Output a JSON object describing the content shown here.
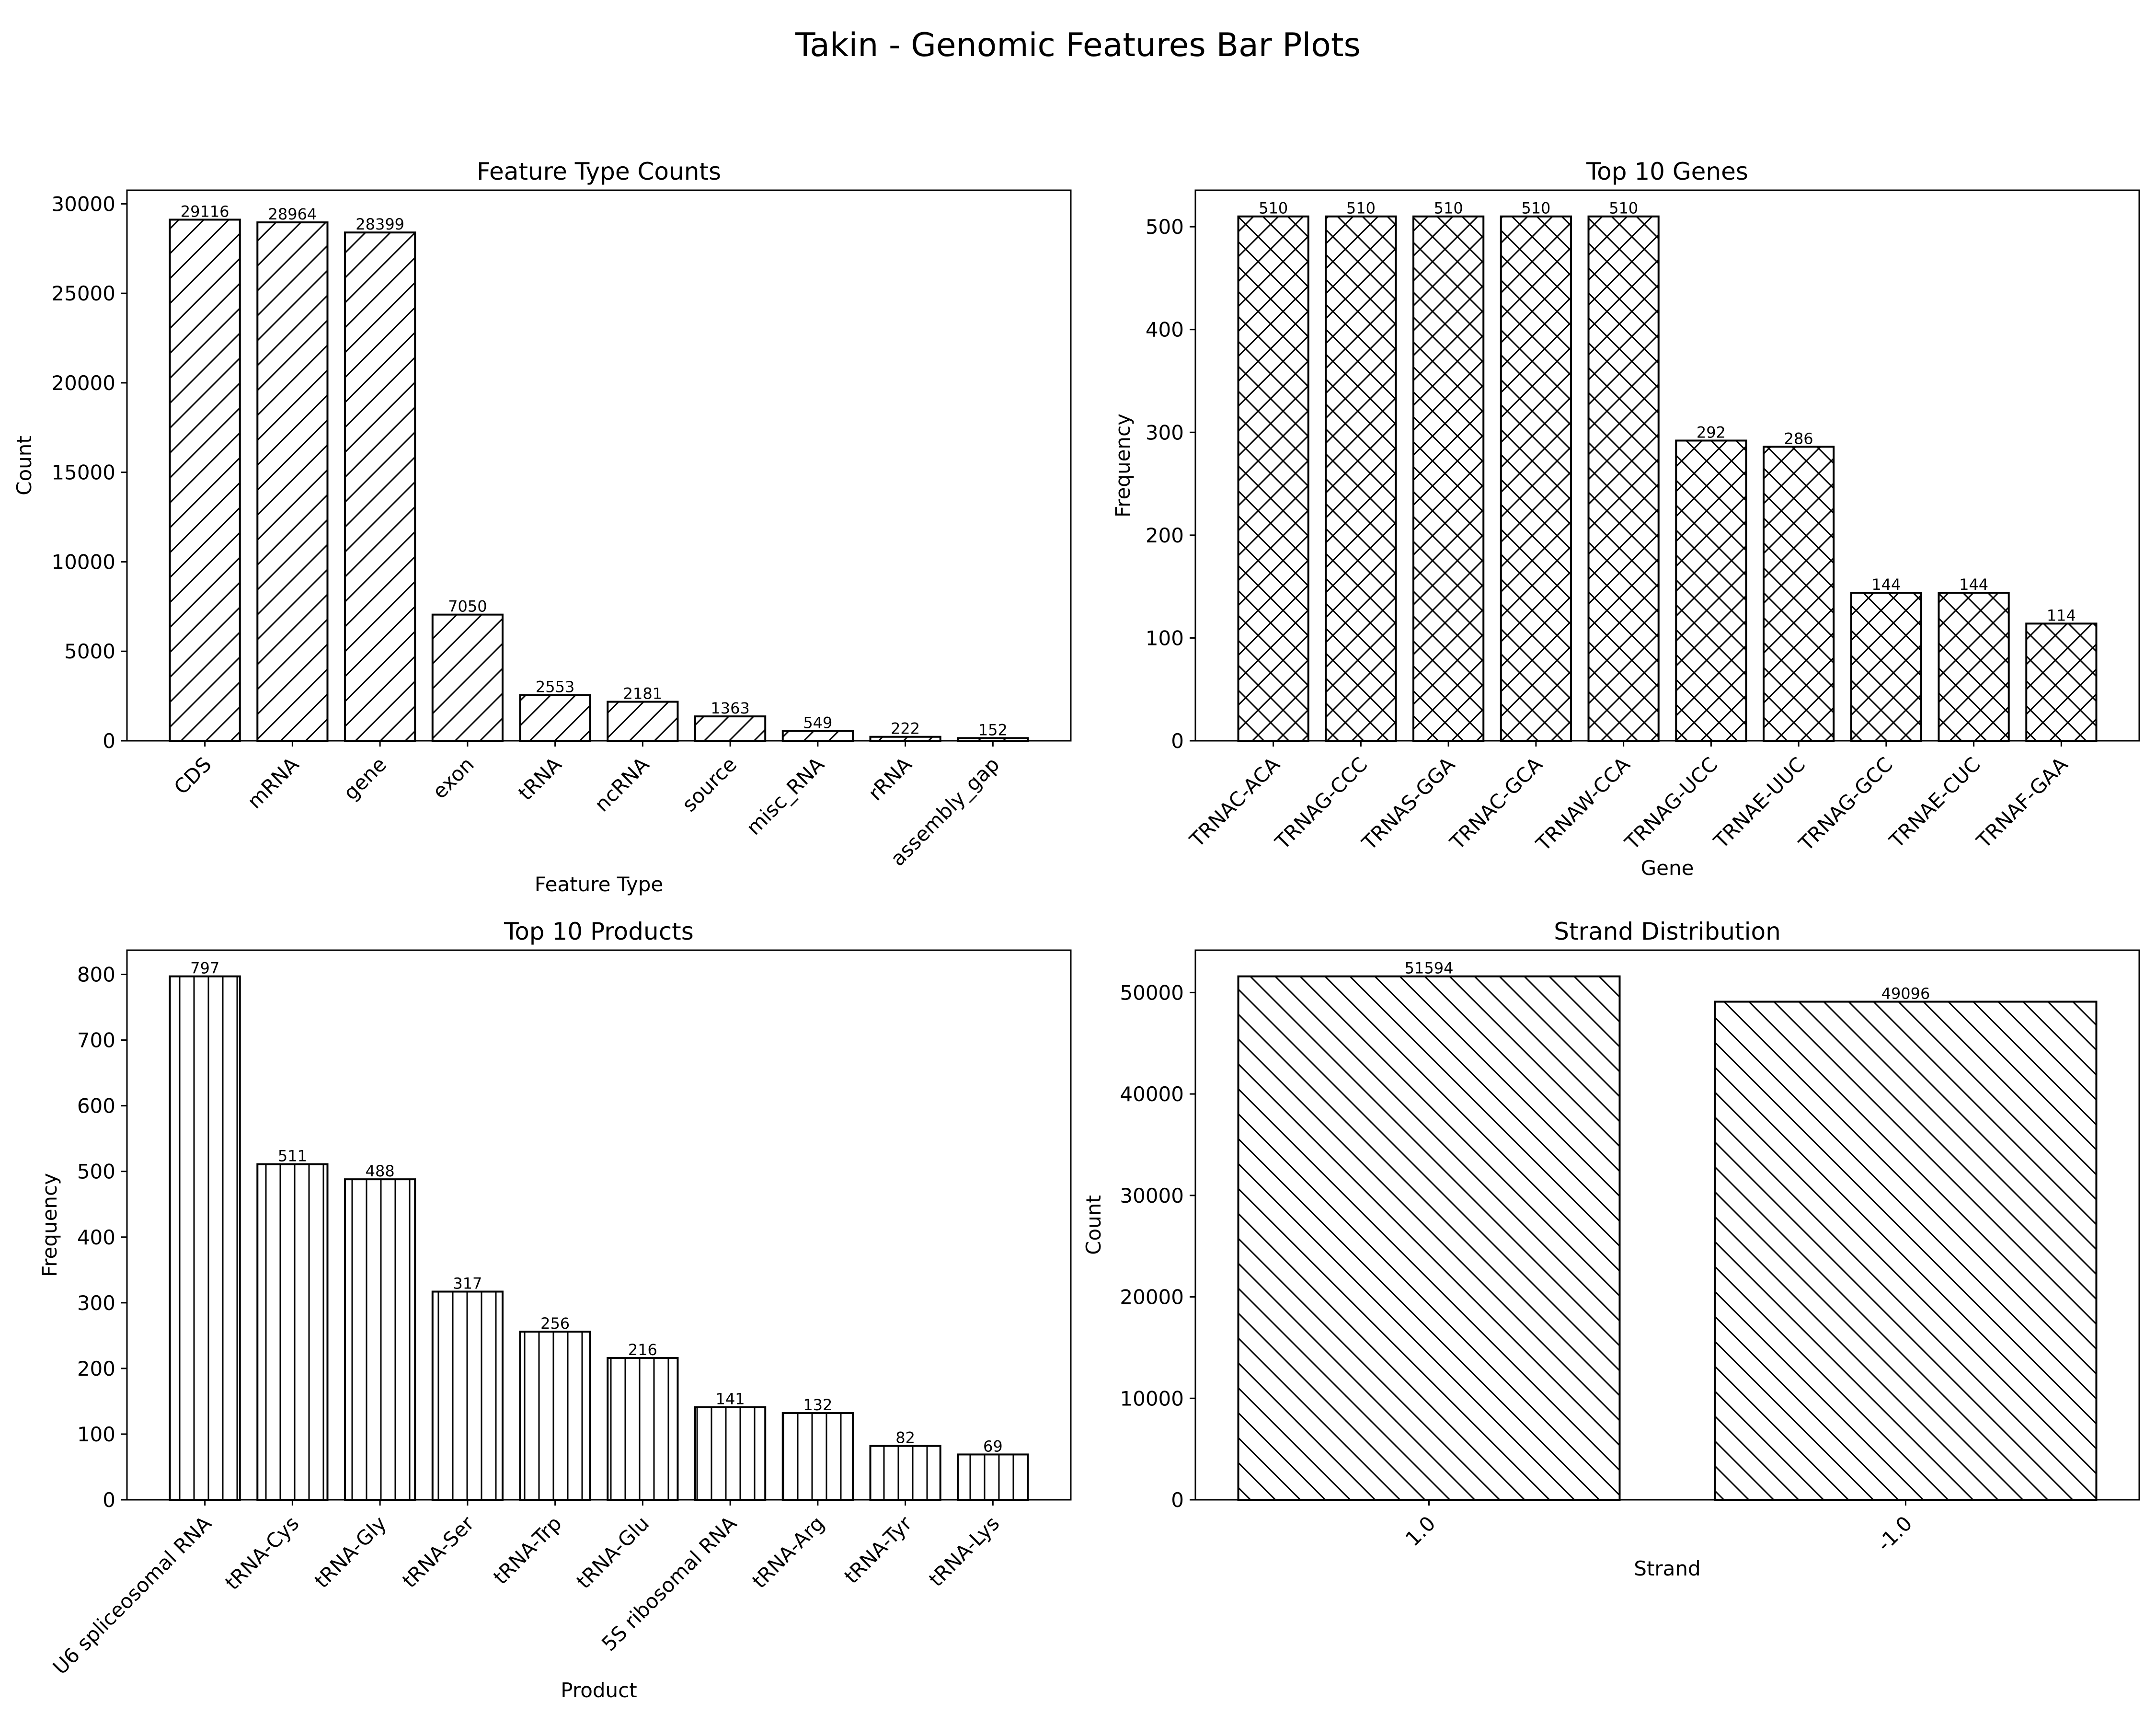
{
  "suptitle": "Takin - Genomic Features Bar Plots",
  "chart_data": [
    {
      "type": "bar",
      "title": "Feature Type Counts",
      "xlabel": "Feature Type",
      "ylabel": "Count",
      "categories": [
        "CDS",
        "mRNA",
        "gene",
        "exon",
        "tRNA",
        "ncRNA",
        "source",
        "misc_RNA",
        "rRNA",
        "assembly_gap"
      ],
      "values": [
        29116,
        28964,
        28399,
        7050,
        2553,
        2181,
        1363,
        549,
        222,
        152
      ],
      "ylim": [
        0,
        30760
      ],
      "yticks": [
        0,
        5000,
        10000,
        15000,
        20000,
        25000,
        30000
      ],
      "hatch": "/",
      "grid": false
    },
    {
      "type": "bar",
      "title": "Top 10 Genes",
      "xlabel": "Gene",
      "ylabel": "Frequency",
      "categories": [
        "TRNAC-ACA",
        "TRNAG-CCC",
        "TRNAS-GGA",
        "TRNAC-GCA",
        "TRNAW-CCA",
        "TRNAG-UCC",
        "TRNAE-UUC",
        "TRNAG-GCC",
        "TRNAE-CUC",
        "TRNAF-GAA"
      ],
      "values": [
        510,
        510,
        510,
        510,
        510,
        292,
        286,
        144,
        144,
        114
      ],
      "ylim": [
        0,
        535.5
      ],
      "yticks": [
        0,
        100,
        200,
        300,
        400,
        500
      ],
      "hatch": "x",
      "grid": false
    },
    {
      "type": "bar",
      "title": "Top 10 Products",
      "xlabel": "Product",
      "ylabel": "Frequency",
      "categories": [
        "U6 spliceosomal RNA",
        "tRNA-Cys",
        "tRNA-Gly",
        "tRNA-Ser",
        "tRNA-Trp",
        "tRNA-Glu",
        "5S ribosomal RNA",
        "tRNA-Arg",
        "tRNA-Tyr",
        "tRNA-Lys"
      ],
      "values": [
        797,
        511,
        488,
        317,
        256,
        216,
        141,
        132,
        82,
        69
      ],
      "ylim": [
        0,
        836.85
      ],
      "yticks": [
        0,
        100,
        200,
        300,
        400,
        500,
        600,
        700,
        800
      ],
      "hatch": "|",
      "grid": false
    },
    {
      "type": "bar",
      "title": "Strand Distribution",
      "xlabel": "Strand",
      "ylabel": "Count",
      "categories": [
        "1.0",
        "-1.0"
      ],
      "values": [
        51594,
        49096
      ],
      "ylim": [
        0,
        54173.7
      ],
      "yticks": [
        0,
        10000,
        20000,
        30000,
        40000,
        50000
      ],
      "hatch": "\\",
      "grid": false
    }
  ]
}
